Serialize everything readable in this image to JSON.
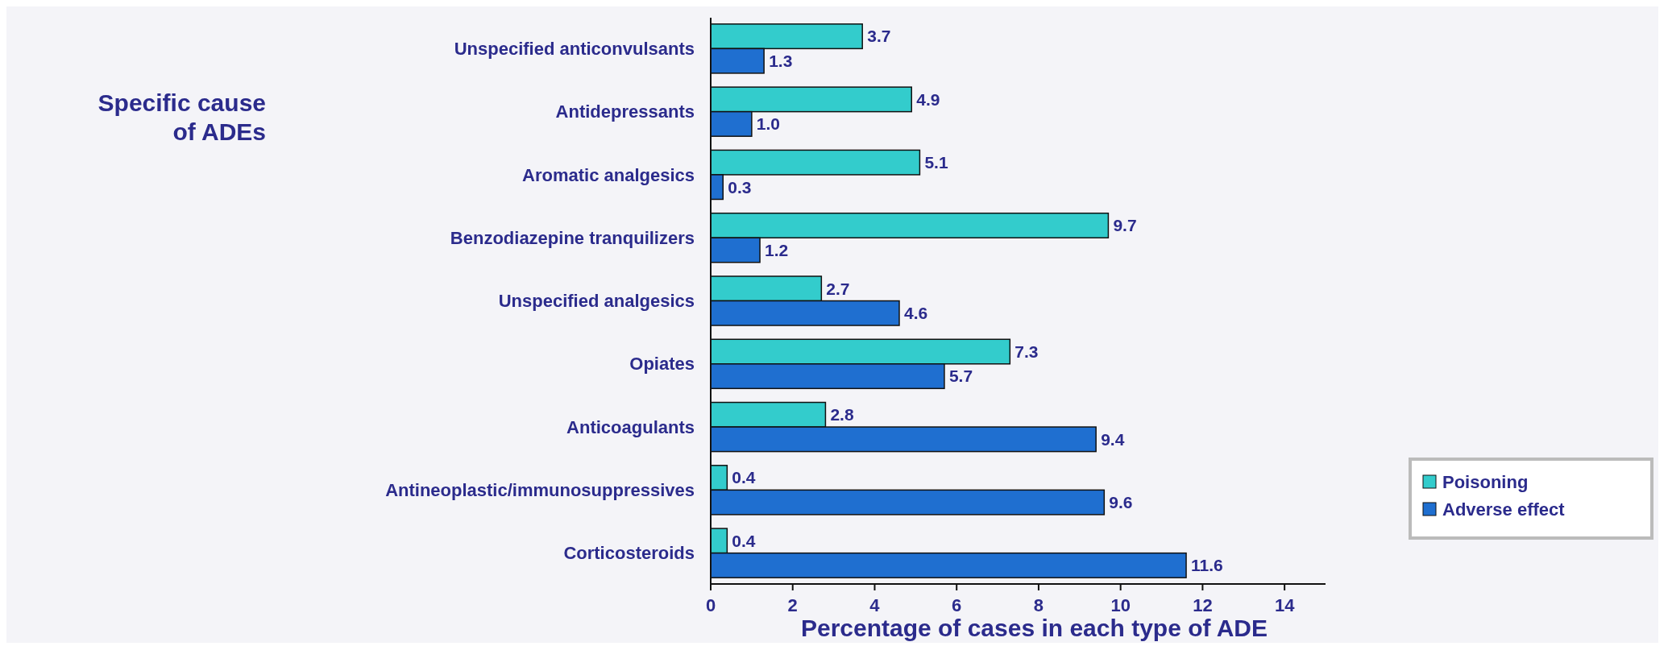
{
  "chart_data": {
    "type": "bar",
    "orientation": "horizontal",
    "ylabel": "Specific cause\nof ADEs",
    "xlabel": "Percentage of cases in each type of ADE",
    "categories": [
      "Unspecified anticonvulsants",
      "Antidepressants",
      "Aromatic analgesics",
      "Benzodiazepine tranquilizers",
      "Unspecified analgesics",
      "Opiates",
      "Anticoagulants",
      "Antineoplastic/immunosuppressives",
      "Corticosteroids"
    ],
    "series": [
      {
        "name": "Poisoning",
        "color": "#33cccc",
        "values": [
          3.7,
          4.9,
          5.1,
          9.7,
          2.7,
          7.3,
          2.8,
          0.4,
          0.4
        ],
        "value_labels": [
          "3.7",
          "4.9",
          "5.1",
          "9.7",
          "2.7",
          "7.3",
          "2.8",
          "0.4",
          "0.4"
        ]
      },
      {
        "name": "Adverse effect",
        "color": "#1f6fd0",
        "values": [
          1.3,
          1.0,
          0.3,
          1.2,
          4.6,
          5.7,
          9.4,
          9.6,
          11.6
        ],
        "value_labels": [
          "1.3",
          "1.0",
          "0.3",
          "1.2",
          "4.6",
          "5.7",
          "9.4",
          "9.6",
          "11.6"
        ]
      }
    ],
    "xlim": [
      0,
      15
    ],
    "xticks": [
      0,
      2,
      4,
      6,
      8,
      10,
      12,
      14
    ],
    "legend": "right"
  }
}
